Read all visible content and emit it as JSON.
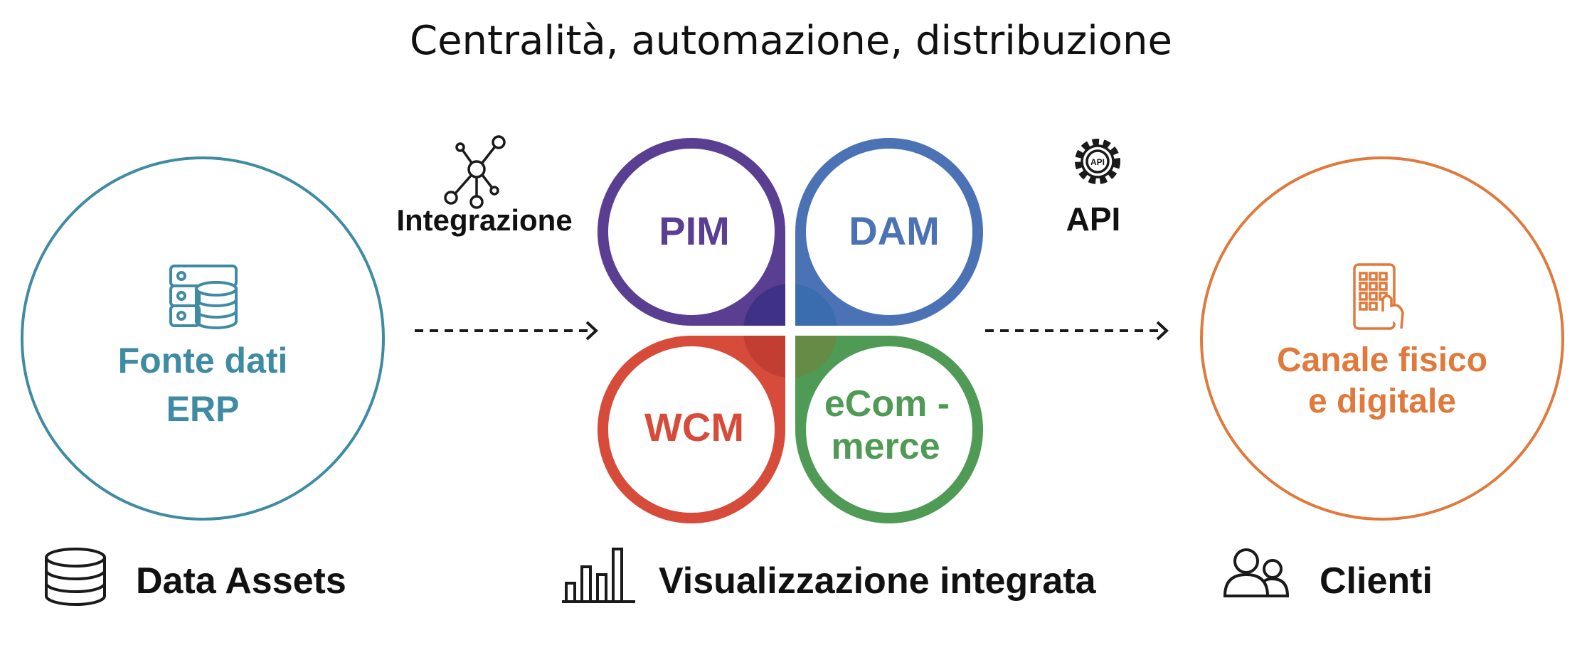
{
  "title": "Centralità, automazione, distribuzione",
  "source": {
    "line1": "Fonte dati",
    "line2": "ERP",
    "icon": "server-database-icon",
    "color": "#3e8ba3"
  },
  "integration": {
    "label": "Integrazione",
    "icon": "network-hub-icon"
  },
  "api": {
    "label": "API",
    "icon": "api-gear-icon"
  },
  "hub": {
    "pim": {
      "label": "PIM",
      "color": "#5a3e91",
      "shade": "#3f3185"
    },
    "dam": {
      "label": "DAM",
      "color": "#4a72b5",
      "shade": "#3a6cb0"
    },
    "wcm": {
      "label": "WCM",
      "color": "#d64b3a",
      "shade": "#c23e33"
    },
    "ecommerce": {
      "line1": "eCom -",
      "line2": "merce",
      "color": "#4f9a55",
      "shade": "#658c47"
    }
  },
  "channel": {
    "line1": "Canale fisico",
    "line2": "e digitale",
    "icon": "smartphone-touch-icon",
    "color": "#e0793c"
  },
  "footer": {
    "data_assets": {
      "label": "Data Assets",
      "icon": "database-icon"
    },
    "visualization": {
      "label": "Visualizzazione integrata",
      "icon": "bar-chart-icon"
    },
    "clients": {
      "label": "Clienti",
      "icon": "users-icon"
    }
  }
}
